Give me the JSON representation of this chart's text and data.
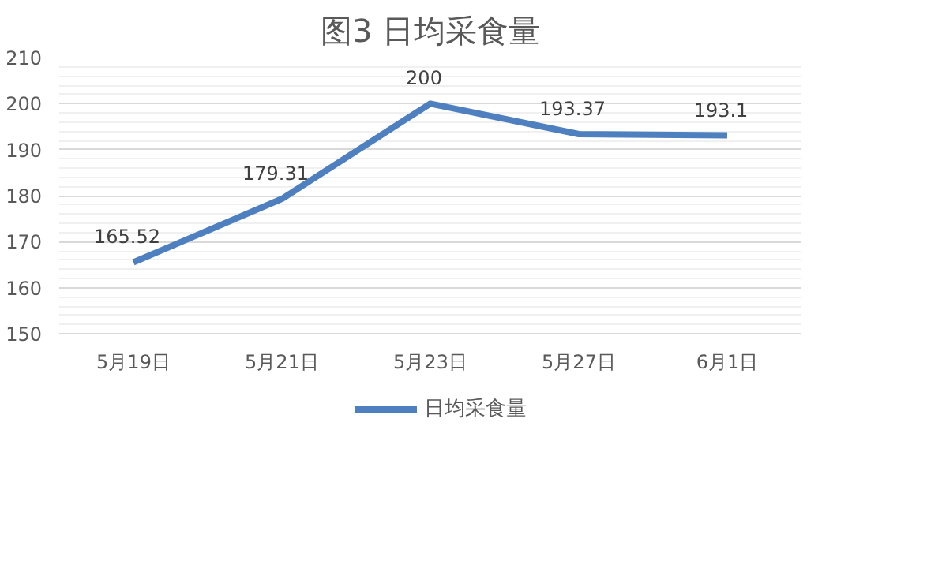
{
  "chart_data": {
    "type": "line",
    "title": "图3 日均采食量",
    "categories": [
      "5月19日",
      "5月21日",
      "5月23日",
      "5月27日",
      "6月1日"
    ],
    "series": [
      {
        "name": "日均采食量",
        "color": "#4e7fbf",
        "values": [
          165.52,
          179.31,
          200,
          193.37,
          193.1
        ]
      }
    ],
    "ylim": [
      150,
      210
    ],
    "yticks": [
      150,
      160,
      170,
      180,
      190,
      200,
      210
    ],
    "grid": "y",
    "legend": "bottom",
    "data_labels": true,
    "marker": "none",
    "line_style": "solid"
  }
}
